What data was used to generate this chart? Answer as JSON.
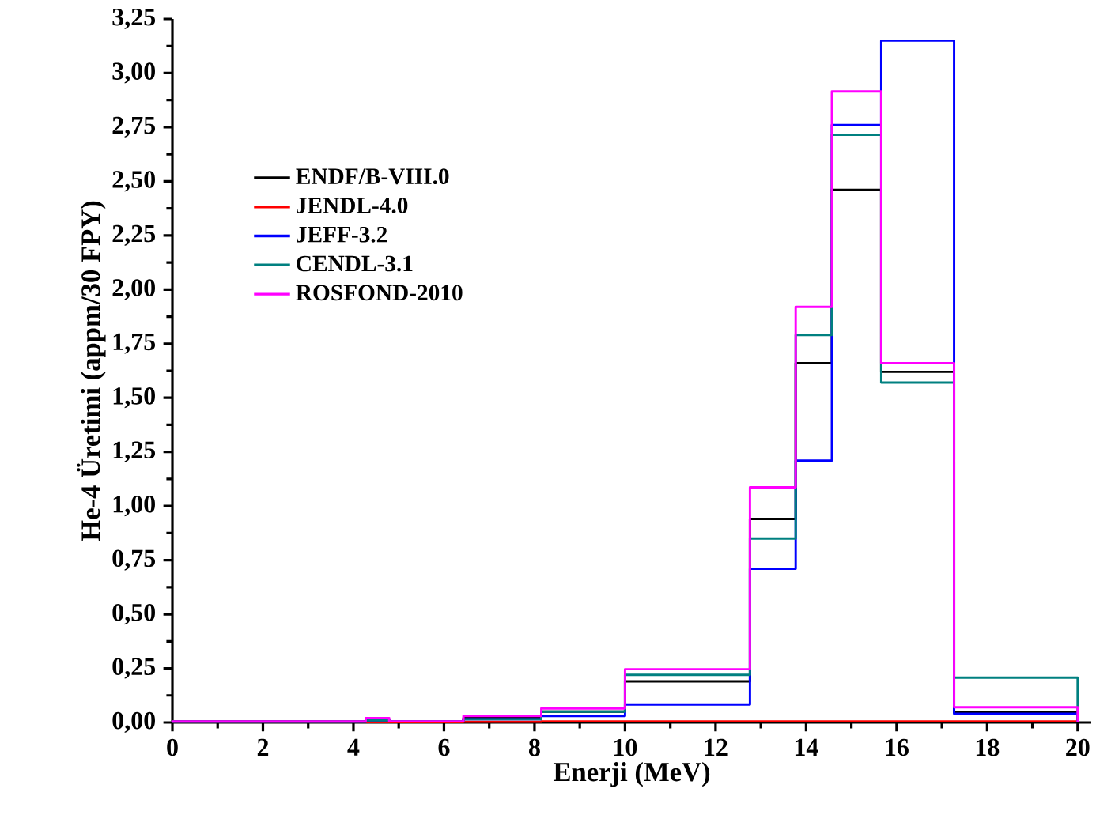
{
  "chart_data": {
    "type": "histogram",
    "xlabel": "Enerji (MeV)",
    "ylabel": "He-4 Üretimi (appm/30 FPY)",
    "bins": [
      0,
      4.27,
      4.79,
      6.43,
      8.15,
      10,
      12.76,
      13.77,
      14.57,
      15.66,
      17.27,
      20
    ],
    "series": [
      {
        "name": "ENDF/B-VIII.0",
        "color": "#000000",
        "values": [
          0.005,
          0.01,
          0.005,
          0.02,
          0.05,
          0.19,
          0.94,
          1.66,
          2.46,
          1.62,
          0.046
        ]
      },
      {
        "name": "JENDL-4.0",
        "color": "#ff0000",
        "values": [
          0.002,
          0.002,
          0.002,
          0.003,
          0.005,
          0.005,
          0.005,
          0.005,
          0.005,
          0.005,
          0.005
        ]
      },
      {
        "name": "JEFF-3.2",
        "color": "#0000ff",
        "values": [
          0.003,
          0.01,
          0.005,
          0.015,
          0.03,
          0.083,
          0.71,
          1.21,
          2.76,
          3.15,
          0.04
        ]
      },
      {
        "name": "CENDL-3.1",
        "color": "#008080",
        "values": [
          0.004,
          0.01,
          0.005,
          0.015,
          0.05,
          0.22,
          0.85,
          1.79,
          2.715,
          1.57,
          0.207
        ]
      },
      {
        "name": "ROSFOND-2010",
        "color": "#ff00ff",
        "values": [
          0.005,
          0.02,
          0.005,
          0.03,
          0.065,
          0.246,
          1.086,
          1.92,
          2.915,
          1.66,
          0.07
        ]
      }
    ],
    "xlim": [
      0,
      20.3
    ],
    "ylim": [
      0,
      3.25
    ],
    "xticks": [
      0,
      2,
      4,
      6,
      8,
      10,
      12,
      14,
      16,
      18,
      20
    ],
    "yticks": [
      {
        "value": 0,
        "label": "0,00"
      },
      {
        "value": 0.25,
        "label": "0,25"
      },
      {
        "value": 0.5,
        "label": "0,50"
      },
      {
        "value": 0.75,
        "label": "0,75"
      },
      {
        "value": 1,
        "label": "1,00"
      },
      {
        "value": 1.25,
        "label": "1,25"
      },
      {
        "value": 1.5,
        "label": "1,50"
      },
      {
        "value": 1.75,
        "label": "1,75"
      },
      {
        "value": 2,
        "label": "2,00"
      },
      {
        "value": 2.25,
        "label": "2,25"
      },
      {
        "value": 2.5,
        "label": "2,50"
      },
      {
        "value": 2.75,
        "label": "2,75"
      },
      {
        "value": 3,
        "label": "3,00"
      },
      {
        "value": 3.25,
        "label": "3,25"
      }
    ],
    "legend": "top left",
    "grid": false,
    "line_style": "solid",
    "marker": "none"
  }
}
